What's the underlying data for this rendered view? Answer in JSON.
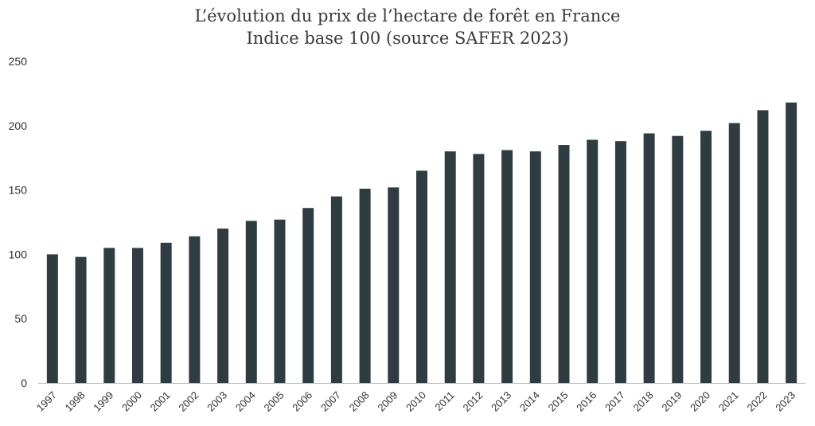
{
  "chart_data": {
    "type": "bar",
    "title": "L’évolution du prix de l’hectare de forêt en France",
    "subtitle": "Indice base 100 (source SAFER 2023)",
    "xlabel": "",
    "ylabel": "",
    "ylim": [
      0,
      250
    ],
    "yticks": [
      0,
      50,
      100,
      150,
      200,
      250
    ],
    "grid": false,
    "bar_color": "#2f3d42",
    "categories": [
      "1997",
      "1998",
      "1999",
      "2000",
      "2001",
      "2002",
      "2003",
      "2004",
      "2005",
      "2006",
      "2007",
      "2008",
      "2009",
      "2010",
      "2011",
      "2012",
      "2013",
      "2014",
      "2015",
      "2016",
      "2017",
      "2018",
      "2019",
      "2020",
      "2021",
      "2022",
      "2023"
    ],
    "values": [
      100,
      98,
      105,
      105,
      109,
      114,
      120,
      126,
      127,
      136,
      145,
      151,
      152,
      165,
      180,
      178,
      181,
      180,
      185,
      189,
      188,
      194,
      192,
      196,
      202,
      212,
      218
    ]
  }
}
